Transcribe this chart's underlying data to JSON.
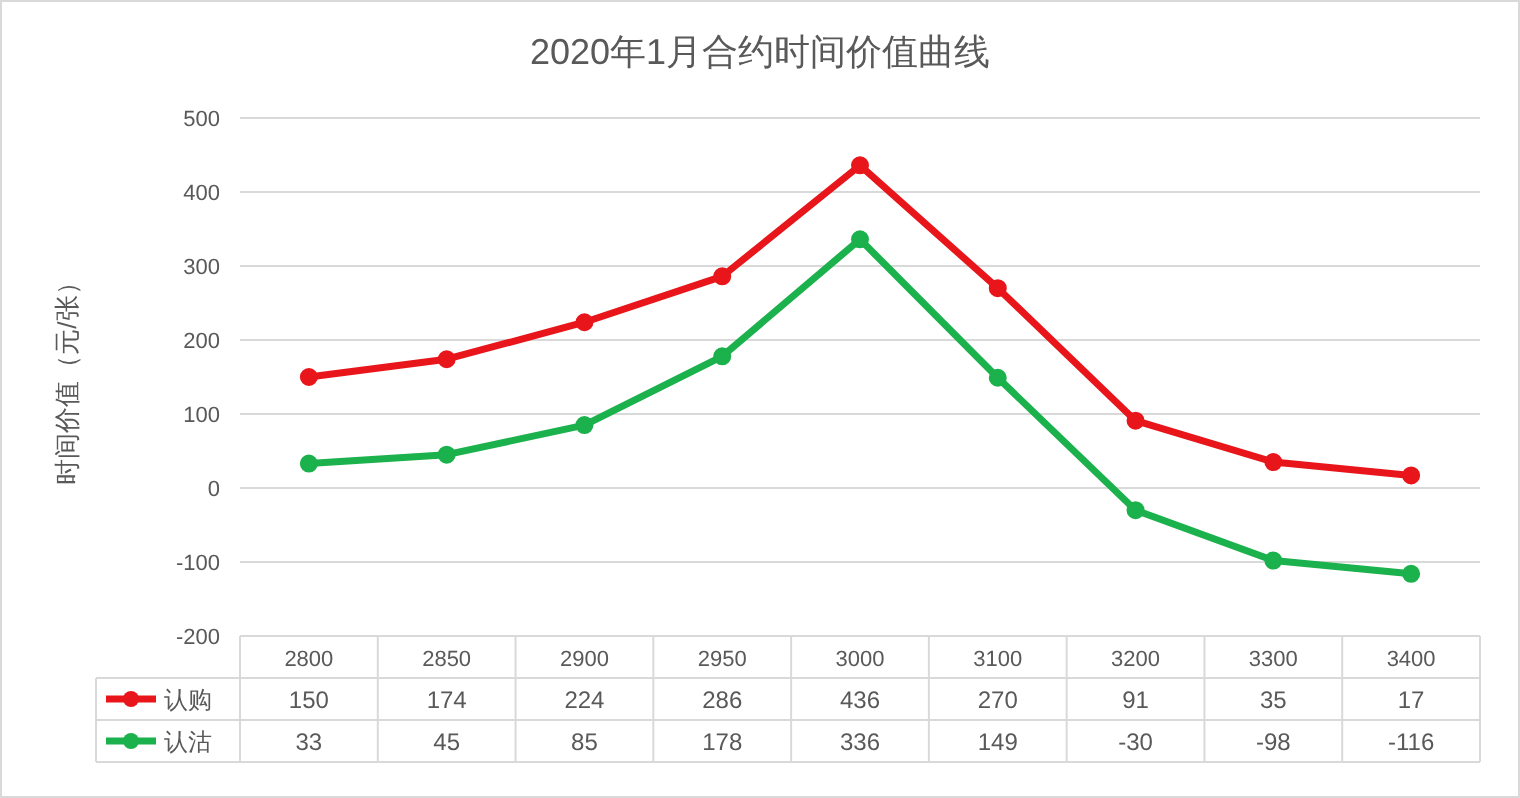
{
  "chart_data": {
    "type": "line",
    "title": "2020年1月合约时间价值曲线",
    "ylabel": "时间价值（元/张）",
    "categories": [
      "2800",
      "2850",
      "2900",
      "2950",
      "3000",
      "3100",
      "3200",
      "3300",
      "3400"
    ],
    "series": [
      {
        "name": "认购",
        "color": "#e8161b",
        "values": [
          150,
          174,
          224,
          286,
          436,
          270,
          91,
          35,
          17
        ]
      },
      {
        "name": "认沽",
        "color": "#1bb14c",
        "values": [
          33,
          45,
          85,
          178,
          336,
          149,
          -30,
          -98,
          -116
        ]
      }
    ],
    "ylim": [
      -200,
      500
    ],
    "yticks": [
      -200,
      -100,
      0,
      100,
      200,
      300,
      400,
      500
    ],
    "grid": "y",
    "marker": "circle",
    "line_style": "solid",
    "data_labels": true,
    "legend": "bottom"
  }
}
